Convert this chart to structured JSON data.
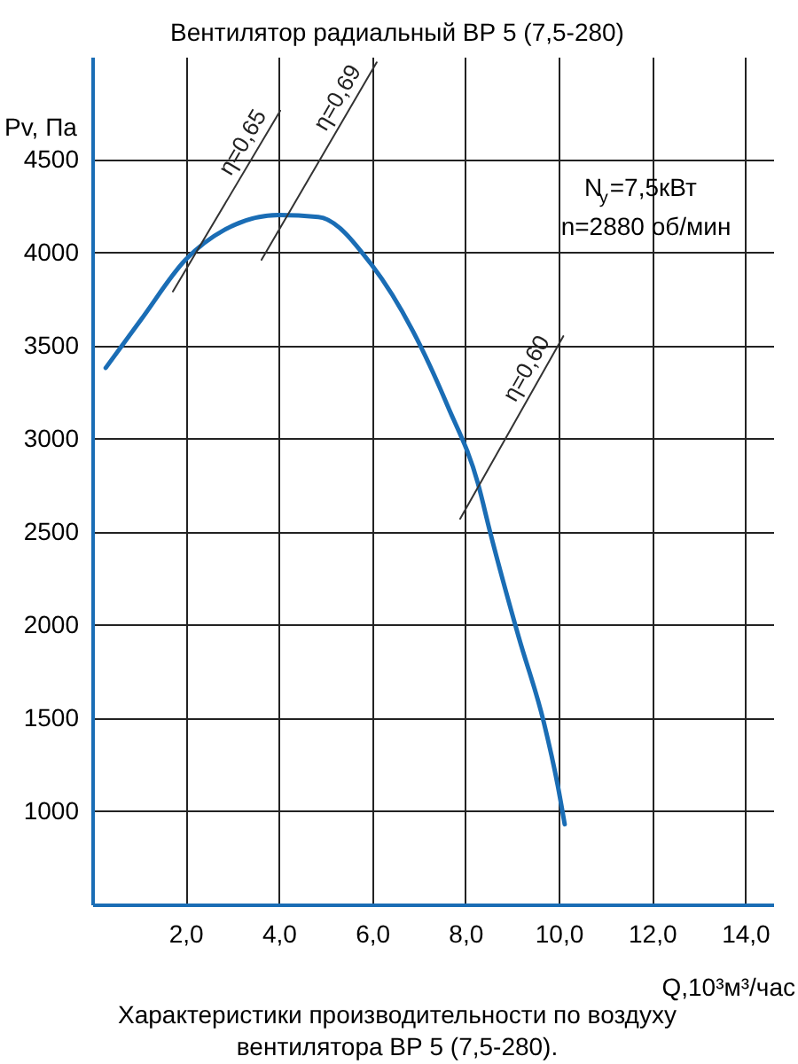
{
  "chart_data": {
    "type": "line",
    "title": "Вентилятор радиальный ВР 5 (7,5-280)",
    "xlabel": "Q,10³м³/час",
    "ylabel": "Pv, Па",
    "xlim": [
      0,
      14.6
    ],
    "ylim": [
      500,
      5050
    ],
    "xticks": [
      {
        "value": 2,
        "label": "2,0"
      },
      {
        "value": 4,
        "label": "4,0"
      },
      {
        "value": 6,
        "label": "6,0"
      },
      {
        "value": 8,
        "label": "8,0"
      },
      {
        "value": 10,
        "label": "10,0"
      },
      {
        "value": 12,
        "label": "12,0"
      },
      {
        "value": 14,
        "label": "14,0"
      }
    ],
    "yticks": [
      1000,
      1500,
      2000,
      2500,
      3000,
      3500,
      4000,
      4500
    ],
    "grid": true,
    "series": [
      {
        "color": "#1a6db5",
        "x": [
          0.29,
          1.05,
          2.0,
          2.83,
          4.0,
          4.85,
          6.0,
          6.87,
          7.63,
          8.27,
          8.53,
          9.15,
          9.68,
          9.98,
          10.13
        ],
        "values": [
          3380,
          3640,
          3960,
          4120,
          4200,
          4190,
          3930,
          3580,
          3170,
          2760,
          2500,
          1930,
          1480,
          1140,
          930
        ]
      },
      {
        "name": "η=0,65",
        "color": "#333333",
        "x": [
          1.73,
          4.03
        ],
        "values": [
          3790,
          4760
        ]
      },
      {
        "name": "η=0,69",
        "color": "#333333",
        "x": [
          3.63,
          6.1
        ],
        "values": [
          3960,
          5020
        ]
      },
      {
        "name": "η=0,60",
        "color": "#333333",
        "x": [
          7.89,
          10.1
        ],
        "values": [
          2570,
          3550
        ]
      }
    ],
    "annotations": [
      "N$_{y}$=7,5кВт",
      "n=2880 об/мин",
      "Характеристики производительности по воздуху\nвентилятора  ВР 5 (7,5-280)."
    ]
  }
}
